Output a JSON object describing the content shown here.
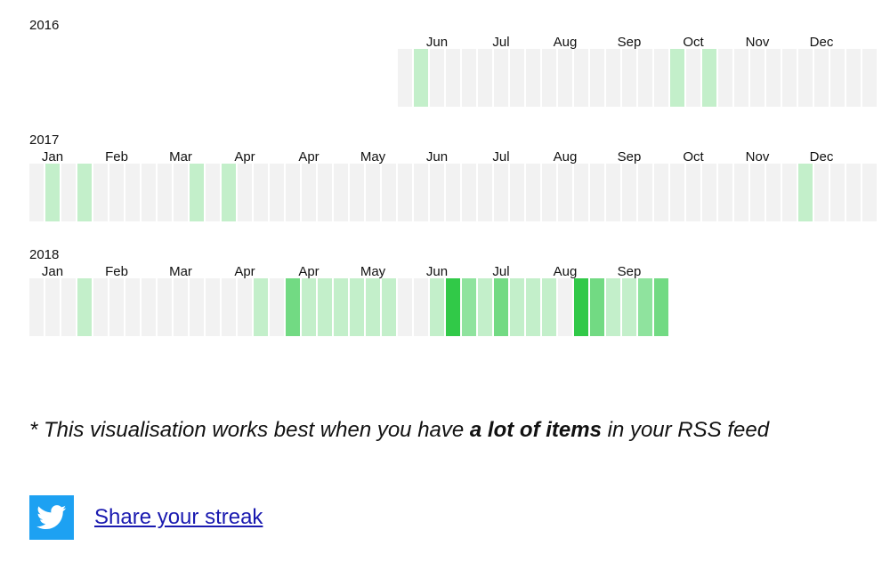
{
  "colors": {
    "empty": "#f2f2f2",
    "level1": "#c3efca",
    "level2": "#8fe39e",
    "level3": "#72da83",
    "level4": "#31c948",
    "twitter": "#1da1f2",
    "link": "#1a1ab0"
  },
  "years": [
    {
      "label": "2016",
      "first_week": 23,
      "months": [
        {
          "label": "Jun",
          "week": 25
        },
        {
          "label": "Jul",
          "week": 29
        },
        {
          "label": "Aug",
          "week": 33
        },
        {
          "label": "Sep",
          "week": 37
        },
        {
          "label": "Oct",
          "week": 41
        },
        {
          "label": "Nov",
          "week": 45
        },
        {
          "label": "Dec",
          "week": 49
        }
      ],
      "weeks": [
        0,
        1,
        0,
        0,
        0,
        0,
        0,
        0,
        0,
        0,
        0,
        0,
        0,
        0,
        0,
        0,
        0,
        1,
        0,
        1,
        0,
        0,
        0,
        0,
        0,
        0,
        0,
        0,
        0,
        0
      ]
    },
    {
      "label": "2017",
      "first_week": 0,
      "months": [
        {
          "label": "Jan",
          "week": 1
        },
        {
          "label": "Feb",
          "week": 5
        },
        {
          "label": "Mar",
          "week": 9
        },
        {
          "label": "Apr",
          "week": 13
        },
        {
          "label": "Apr",
          "week": 17
        },
        {
          "label": "May",
          "week": 21
        },
        {
          "label": "Jun",
          "week": 25
        },
        {
          "label": "Jul",
          "week": 29
        },
        {
          "label": "Aug",
          "week": 33
        },
        {
          "label": "Sep",
          "week": 37
        },
        {
          "label": "Oct",
          "week": 41
        },
        {
          "label": "Nov",
          "week": 45
        },
        {
          "label": "Dec",
          "week": 49
        }
      ],
      "weeks": [
        0,
        1,
        0,
        1,
        0,
        0,
        0,
        0,
        0,
        0,
        1,
        0,
        1,
        0,
        0,
        0,
        0,
        0,
        0,
        0,
        0,
        0,
        0,
        0,
        0,
        0,
        0,
        0,
        0,
        0,
        0,
        0,
        0,
        0,
        0,
        0,
        0,
        0,
        0,
        0,
        0,
        0,
        0,
        0,
        0,
        0,
        0,
        0,
        1,
        0,
        0,
        0,
        0
      ]
    },
    {
      "label": "2018",
      "first_week": 0,
      "months": [
        {
          "label": "Jan",
          "week": 1
        },
        {
          "label": "Feb",
          "week": 5
        },
        {
          "label": "Mar",
          "week": 9
        },
        {
          "label": "Apr",
          "week": 13
        },
        {
          "label": "Apr",
          "week": 17
        },
        {
          "label": "May",
          "week": 21
        },
        {
          "label": "Jun",
          "week": 25
        },
        {
          "label": "Jul",
          "week": 29
        },
        {
          "label": "Aug",
          "week": 33
        },
        {
          "label": "Sep",
          "week": 37
        }
      ],
      "weeks": [
        0,
        0,
        0,
        1,
        0,
        0,
        0,
        0,
        0,
        0,
        0,
        0,
        0,
        0,
        1,
        0,
        3,
        1,
        1,
        1,
        1,
        1,
        1,
        0,
        0,
        1,
        4,
        2,
        1,
        3,
        1,
        1,
        1,
        0,
        4,
        3,
        1,
        1,
        2,
        3
      ]
    }
  ],
  "footnote": {
    "prefix": "* This visualisation works best when you have ",
    "bold": "a lot of items",
    "suffix": " in your RSS feed"
  },
  "share": {
    "icon": "twitter-icon",
    "label": "Share your streak"
  }
}
